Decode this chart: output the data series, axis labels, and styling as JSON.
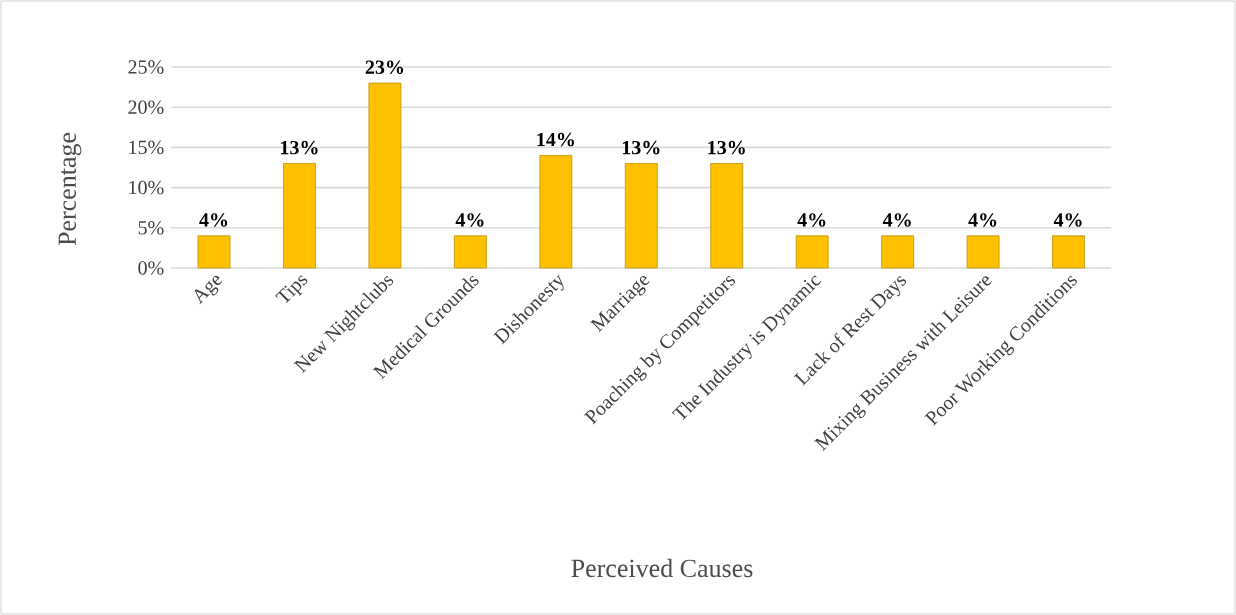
{
  "chart_data": {
    "type": "bar",
    "xlabel": "Perceived Causes",
    "ylabel": "Percentage",
    "categories": [
      "Age",
      "Tips",
      "New Nightclubs",
      "Medical Grounds",
      "Dishonesty",
      "Marriage",
      "Poaching by Competitors",
      "The Industry is Dynamic",
      "Lack of Rest Days",
      "Mixing Business with Leisure",
      "Poor Working Conditions"
    ],
    "values": [
      4,
      13,
      23,
      4,
      14,
      13,
      13,
      4,
      4,
      4,
      4
    ],
    "value_labels": [
      "4%",
      "13%",
      "23%",
      "4%",
      "14%",
      "13%",
      "13%",
      "4%",
      "4%",
      "4%",
      "4%"
    ],
    "color": "#ffc000",
    "ylim": [
      0,
      25
    ],
    "yticks": [
      {
        "value": 0,
        "label": "0%"
      },
      {
        "value": 5,
        "label": "5%"
      },
      {
        "value": 10,
        "label": "10%"
      },
      {
        "value": 15,
        "label": "15%"
      },
      {
        "value": 20,
        "label": "20%"
      },
      {
        "value": 25,
        "label": "25%"
      }
    ],
    "grid": "y"
  }
}
